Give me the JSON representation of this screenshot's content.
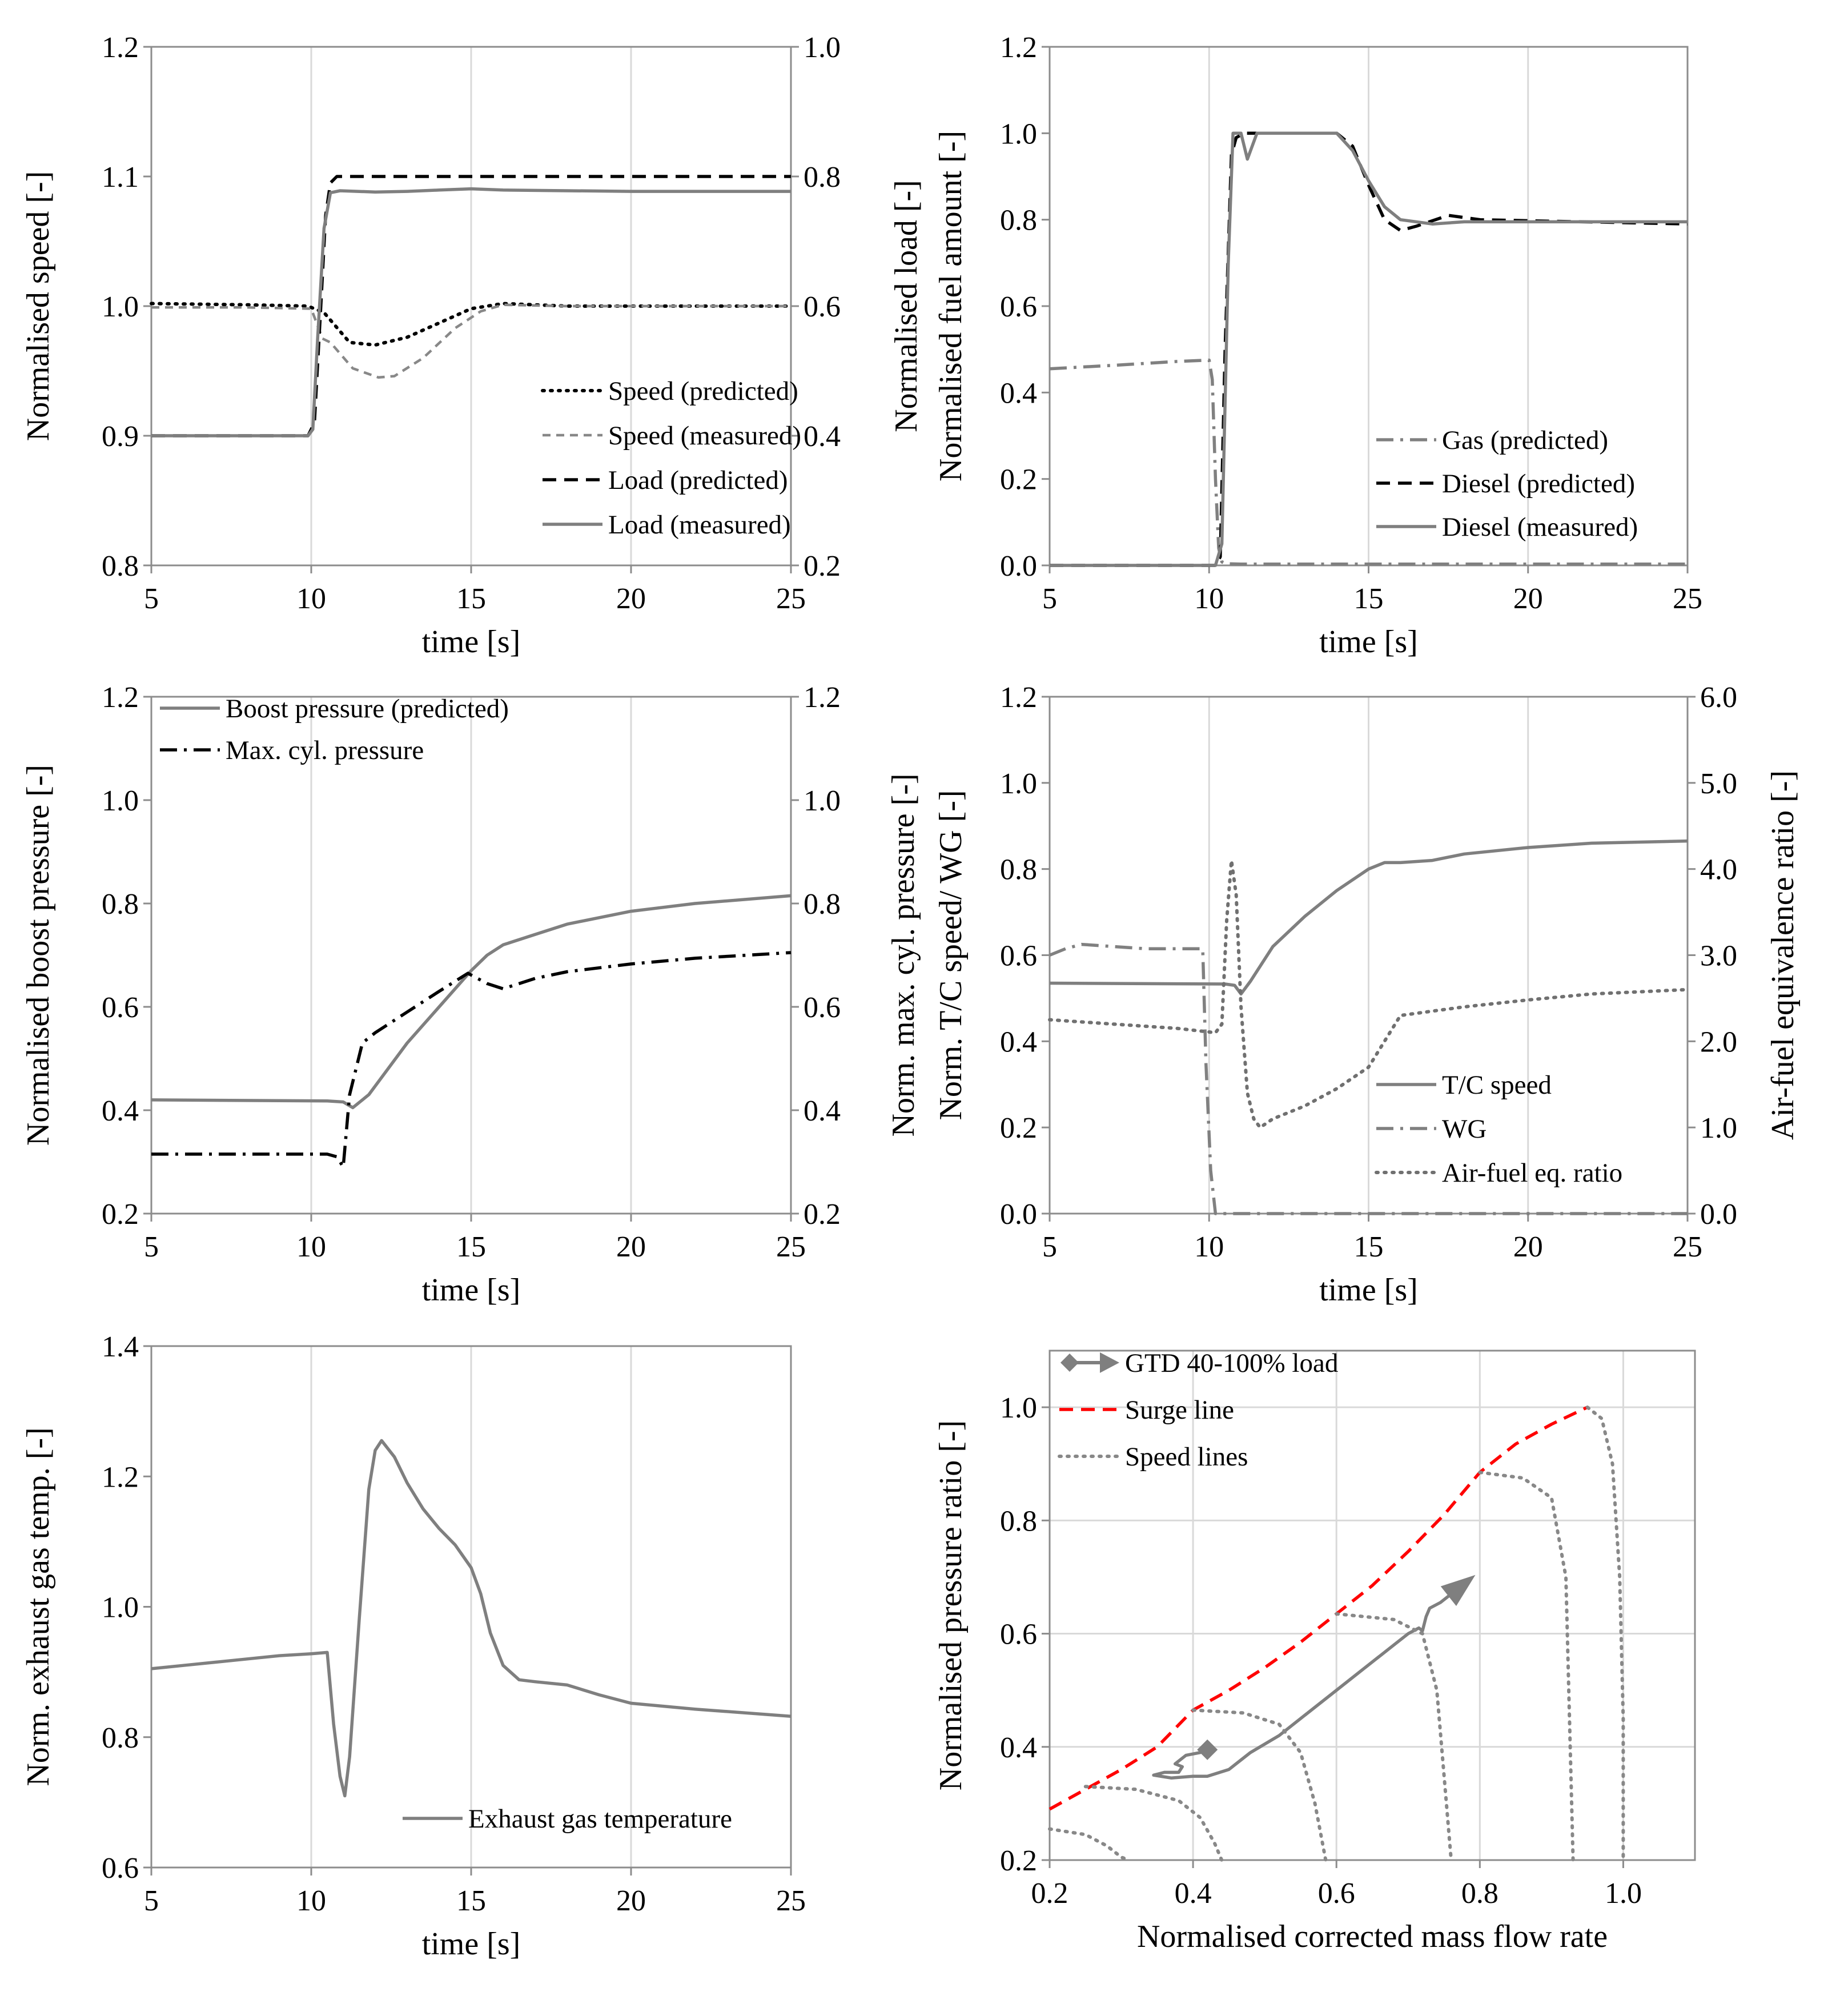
{
  "chart_data": [
    {
      "id": "speed-load",
      "type": "line",
      "xlabel": "time [s]",
      "ylabel": "Normalised speed [-]",
      "y2label": "Normalised load [-]",
      "xlim": [
        5,
        25
      ],
      "ylim": [
        0.8,
        1.2
      ],
      "y2lim": [
        0.2,
        1.0
      ],
      "xticks": [
        "5",
        "10",
        "15",
        "20",
        "25"
      ],
      "yticks": [
        "0.8",
        "0.9",
        "1.0",
        "1.1",
        "1.2"
      ],
      "y2ticks": [
        "0.2",
        "0.4",
        "0.6",
        "0.8",
        "1.0"
      ],
      "grid": "vertical",
      "legend_position": "bottom-right",
      "series": [
        {
          "name": "Speed (predicted)",
          "axis": "left",
          "style": "dotted",
          "color": "#000000",
          "x": [
            5,
            8,
            9.9,
            10.4,
            11.2,
            12,
            13,
            14,
            15,
            16,
            18,
            20,
            25
          ],
          "y": [
            1.002,
            1.001,
            1.0,
            0.995,
            0.972,
            0.97,
            0.976,
            0.987,
            0.998,
            1.002,
            1.0,
            1.0,
            1.0
          ]
        },
        {
          "name": "Speed (measured)",
          "axis": "left",
          "style": "dashed-fine",
          "color": "#888888",
          "x": [
            5,
            8,
            10,
            10.35,
            10.6,
            11.3,
            12.1,
            12.6,
            13.5,
            14.5,
            15.3,
            16,
            18,
            25
          ],
          "y": [
            0.999,
            0.999,
            0.998,
            0.975,
            0.972,
            0.952,
            0.945,
            0.946,
            0.96,
            0.983,
            0.996,
            1.001,
            1.0,
            1.0
          ]
        },
        {
          "name": "Load (predicted)",
          "axis": "right",
          "style": "dashed",
          "color": "#000000",
          "x": [
            5,
            9.9,
            10.1,
            10.3,
            10.45,
            10.6,
            10.8,
            25
          ],
          "y": [
            0.4,
            0.4,
            0.42,
            0.6,
            0.74,
            0.79,
            0.8,
            0.8
          ]
        },
        {
          "name": "Load (measured)",
          "axis": "right",
          "style": "solid",
          "color": "#7f7f7f",
          "x": [
            5,
            9.9,
            10.05,
            10.2,
            10.4,
            10.6,
            10.9,
            12,
            13,
            14,
            15,
            16,
            20,
            25
          ],
          "y": [
            0.4,
            0.4,
            0.41,
            0.55,
            0.72,
            0.775,
            0.778,
            0.776,
            0.777,
            0.779,
            0.781,
            0.779,
            0.777,
            0.777
          ]
        }
      ]
    },
    {
      "id": "fuel",
      "type": "line",
      "xlabel": "time [s]",
      "ylabel": "Normalised fuel amount [-]",
      "xlim": [
        5,
        25
      ],
      "ylim": [
        0.0,
        1.2
      ],
      "xticks": [
        "5",
        "10",
        "15",
        "20",
        "25"
      ],
      "yticks": [
        "0.0",
        "0.2",
        "0.4",
        "0.6",
        "0.8",
        "1.0",
        "1.2"
      ],
      "grid": "vertical",
      "legend_position": "bottom-right",
      "series": [
        {
          "name": "Gas (predicted)",
          "axis": "left",
          "style": "dashdot",
          "color": "#808080",
          "x": [
            5,
            7,
            9,
            10,
            10.1,
            10.2,
            10.3,
            10.4,
            10.5,
            11,
            25
          ],
          "y": [
            0.455,
            0.463,
            0.472,
            0.475,
            0.43,
            0.2,
            0.04,
            0.008,
            0.004,
            0.003,
            0.003
          ]
        },
        {
          "name": "Diesel (predicted)",
          "axis": "left",
          "style": "dashed",
          "color": "#000000",
          "x": [
            5,
            10.2,
            10.35,
            10.5,
            10.7,
            10.85,
            11.1,
            13,
            14,
            14.5,
            15,
            15.5,
            16,
            16.5,
            17.5,
            18.5,
            25
          ],
          "y": [
            0.0,
            0.0,
            0.02,
            0.5,
            0.95,
            0.99,
            1.0,
            1.0,
            1.0,
            0.97,
            0.88,
            0.8,
            0.775,
            0.785,
            0.81,
            0.8,
            0.79
          ]
        },
        {
          "name": "Diesel (measured)",
          "axis": "left",
          "style": "solid",
          "color": "#7f7f7f",
          "x": [
            5,
            10.2,
            10.4,
            10.6,
            10.75,
            11,
            11.2,
            11.5,
            12,
            13,
            14,
            14.5,
            15,
            15.5,
            16,
            17,
            18,
            25
          ],
          "y": [
            0.0,
            0.0,
            0.05,
            0.7,
            1.0,
            1.0,
            0.94,
            1.0,
            1.0,
            1.0,
            1.0,
            0.96,
            0.89,
            0.83,
            0.8,
            0.79,
            0.795,
            0.795
          ]
        }
      ]
    },
    {
      "id": "pressure",
      "type": "line",
      "xlabel": "time [s]",
      "ylabel": "Normalised boost pressure [-]",
      "y2label": "Norm. max. cyl. pressure [-]",
      "xlim": [
        5,
        25
      ],
      "ylim": [
        0.2,
        1.2
      ],
      "y2lim": [
        0.2,
        1.2
      ],
      "xticks": [
        "5",
        "10",
        "15",
        "20",
        "25"
      ],
      "yticks": [
        "0.2",
        "0.4",
        "0.6",
        "0.8",
        "1.0",
        "1.2"
      ],
      "y2ticks": [
        "0.2",
        "0.4",
        "0.6",
        "0.8",
        "1.0",
        "1.2"
      ],
      "grid": "vertical",
      "legend_position": "top-left",
      "series": [
        {
          "name": "Boost pressure (predicted)",
          "axis": "left",
          "style": "solid",
          "color": "#7f7f7f",
          "x": [
            5,
            10.5,
            11,
            11.3,
            11.8,
            13,
            14,
            15,
            15.5,
            16,
            17,
            18,
            20,
            22,
            25
          ],
          "y": [
            0.42,
            0.418,
            0.416,
            0.405,
            0.43,
            0.53,
            0.6,
            0.67,
            0.7,
            0.72,
            0.74,
            0.76,
            0.785,
            0.8,
            0.815
          ]
        },
        {
          "name": "Max. cyl. pressure",
          "axis": "right",
          "style": "dashdot",
          "color": "#000000",
          "x": [
            5,
            10.5,
            10.8,
            11,
            11.2,
            11.6,
            12,
            13,
            14,
            14.9,
            15.5,
            16,
            17,
            18,
            20,
            22,
            25
          ],
          "y": [
            0.315,
            0.315,
            0.31,
            0.29,
            0.43,
            0.53,
            0.55,
            0.59,
            0.63,
            0.665,
            0.645,
            0.635,
            0.655,
            0.668,
            0.683,
            0.694,
            0.705
          ]
        }
      ]
    },
    {
      "id": "tc-speed",
      "type": "line",
      "xlabel": "time [s]",
      "ylabel": "Norm. T/C speed/ WG [-]",
      "y2label": "Air-fuel equivalence ratio [-]",
      "xlim": [
        5,
        25
      ],
      "ylim": [
        0.0,
        1.2
      ],
      "y2lim": [
        0.0,
        6.0
      ],
      "xticks": [
        "5",
        "10",
        "15",
        "20",
        "25"
      ],
      "yticks": [
        "0.0",
        "0.2",
        "0.4",
        "0.6",
        "0.8",
        "1.0",
        "1.2"
      ],
      "y2ticks": [
        "0.0",
        "1.0",
        "2.0",
        "3.0",
        "4.0",
        "5.0",
        "6.0"
      ],
      "grid": "vertical",
      "legend_position": "bottom-right",
      "series": [
        {
          "name": "T/C speed",
          "axis": "left",
          "style": "solid",
          "color": "#7f7f7f",
          "x": [
            5,
            10.5,
            10.8,
            11,
            11.3,
            12,
            13,
            14,
            15,
            15.5,
            16,
            17,
            18,
            20,
            22,
            25
          ],
          "y": [
            0.535,
            0.533,
            0.53,
            0.51,
            0.54,
            0.62,
            0.69,
            0.75,
            0.8,
            0.815,
            0.815,
            0.82,
            0.835,
            0.85,
            0.86,
            0.865
          ]
        },
        {
          "name": "WG",
          "axis": "left",
          "style": "dashdot",
          "color": "#808080",
          "x": [
            5,
            5.5,
            6,
            7,
            8,
            9,
            9.8,
            9.9,
            10.05,
            10.2,
            25
          ],
          "y": [
            0.6,
            0.615,
            0.625,
            0.62,
            0.615,
            0.615,
            0.615,
            0.35,
            0.1,
            0.0,
            0.0
          ]
        },
        {
          "name": "Air-fuel eq. ratio",
          "axis": "right",
          "style": "dotted",
          "color": "#707070",
          "x": [
            5,
            7,
            9,
            10.2,
            10.4,
            10.55,
            10.7,
            10.85,
            11,
            11.2,
            11.4,
            11.6,
            12,
            13,
            14,
            15,
            15.5,
            16,
            17,
            18,
            20,
            22,
            25
          ],
          "y": [
            2.25,
            2.2,
            2.15,
            2.1,
            2.2,
            3.4,
            4.1,
            3.7,
            2.4,
            1.4,
            1.1,
            1.0,
            1.1,
            1.25,
            1.45,
            1.7,
            2.0,
            2.3,
            2.35,
            2.4,
            2.48,
            2.55,
            2.6
          ]
        }
      ]
    },
    {
      "id": "exhaust",
      "type": "line",
      "xlabel": "time [s]",
      "ylabel": "Norm. exhaust gas temp. [-]",
      "xlim": [
        5,
        25
      ],
      "ylim": [
        0.6,
        1.4
      ],
      "xticks": [
        "5",
        "10",
        "15",
        "20",
        "25"
      ],
      "yticks": [
        "0.6",
        "0.8",
        "1.0",
        "1.2",
        "1.4"
      ],
      "grid": "vertical",
      "legend_position": "bottom-right",
      "series": [
        {
          "name": "Exhaust gas temperature",
          "axis": "left",
          "style": "solid",
          "color": "#7f7f7f",
          "x": [
            5,
            6,
            7,
            8,
            9,
            10,
            10.5,
            10.7,
            10.9,
            11.05,
            11.2,
            11.5,
            11.8,
            12,
            12.2,
            12.6,
            13,
            13.5,
            14,
            14.5,
            15,
            15.3,
            15.6,
            16,
            16.5,
            17,
            18,
            19,
            20,
            22,
            25
          ],
          "y": [
            0.905,
            0.91,
            0.915,
            0.92,
            0.925,
            0.928,
            0.93,
            0.82,
            0.74,
            0.71,
            0.77,
            0.98,
            1.18,
            1.24,
            1.255,
            1.23,
            1.19,
            1.15,
            1.12,
            1.095,
            1.06,
            1.02,
            0.96,
            0.91,
            0.888,
            0.885,
            0.88,
            0.865,
            0.852,
            0.843,
            0.832
          ]
        }
      ]
    },
    {
      "id": "compressor-map",
      "type": "line",
      "xlabel": "Normalised corrected mass flow rate",
      "ylabel": "Normalised pressure ratio [-]",
      "xlim": [
        0.2,
        1.1
      ],
      "ylim": [
        0.2,
        1.1
      ],
      "xticks": [
        "0.2",
        "0.4",
        "0.6",
        "0.8",
        "1.0"
      ],
      "yticks": [
        "0.2",
        "0.4",
        "0.6",
        "0.8",
        "1.0"
      ],
      "grid": "both",
      "legend_position": "top-left",
      "series": [
        {
          "name": "GTD 40-100% load",
          "style": "solid-arrow",
          "color": "#7f7f7f",
          "start_marker": "diamond",
          "x": [
            0.42,
            0.41,
            0.39,
            0.375,
            0.385,
            0.38,
            0.36,
            0.345,
            0.37,
            0.4,
            0.42,
            0.45,
            0.48,
            0.52,
            0.56,
            0.6,
            0.64,
            0.68,
            0.7,
            0.715,
            0.72,
            0.725,
            0.73,
            0.745,
            0.765,
            0.785
          ],
          "y": [
            0.395,
            0.39,
            0.385,
            0.37,
            0.365,
            0.355,
            0.355,
            0.35,
            0.345,
            0.348,
            0.348,
            0.36,
            0.39,
            0.42,
            0.46,
            0.5,
            0.54,
            0.58,
            0.6,
            0.61,
            0.605,
            0.63,
            0.645,
            0.655,
            0.675,
            0.695
          ]
        },
        {
          "name": "Surge line",
          "style": "dashed",
          "color": "#ff0000",
          "x": [
            0.2,
            0.25,
            0.3,
            0.35,
            0.4,
            0.45,
            0.5,
            0.55,
            0.6,
            0.65,
            0.7,
            0.75,
            0.8,
            0.85,
            0.9,
            0.95
          ],
          "y": [
            0.29,
            0.325,
            0.36,
            0.4,
            0.465,
            0.5,
            0.54,
            0.585,
            0.635,
            0.685,
            0.745,
            0.81,
            0.885,
            0.935,
            0.97,
            1.0
          ]
        },
        {
          "name": "Speed lines",
          "style": "dotted",
          "color": "#888888",
          "lines": [
            {
              "x": [
                0.2,
                0.25,
                0.28,
                0.3,
                0.31
              ],
              "y": [
                0.255,
                0.245,
                0.225,
                0.205,
                0.2
              ]
            },
            {
              "x": [
                0.25,
                0.32,
                0.38,
                0.41,
                0.43,
                0.44
              ],
              "y": [
                0.33,
                0.325,
                0.305,
                0.275,
                0.23,
                0.2
              ]
            },
            {
              "x": [
                0.4,
                0.47,
                0.52,
                0.55,
                0.57,
                0.585
              ],
              "y": [
                0.465,
                0.46,
                0.44,
                0.39,
                0.3,
                0.2
              ]
            },
            {
              "x": [
                0.6,
                0.68,
                0.72,
                0.74,
                0.75,
                0.76
              ],
              "y": [
                0.635,
                0.625,
                0.6,
                0.5,
                0.35,
                0.2
              ]
            },
            {
              "x": [
                0.8,
                0.86,
                0.9,
                0.92,
                0.925,
                0.93
              ],
              "y": [
                0.885,
                0.875,
                0.84,
                0.7,
                0.45,
                0.2
              ]
            },
            {
              "x": [
                0.95,
                0.97,
                0.985,
                0.995,
                1.0,
                1.0
              ],
              "y": [
                1.0,
                0.98,
                0.9,
                0.7,
                0.45,
                0.2
              ]
            }
          ]
        }
      ]
    }
  ]
}
